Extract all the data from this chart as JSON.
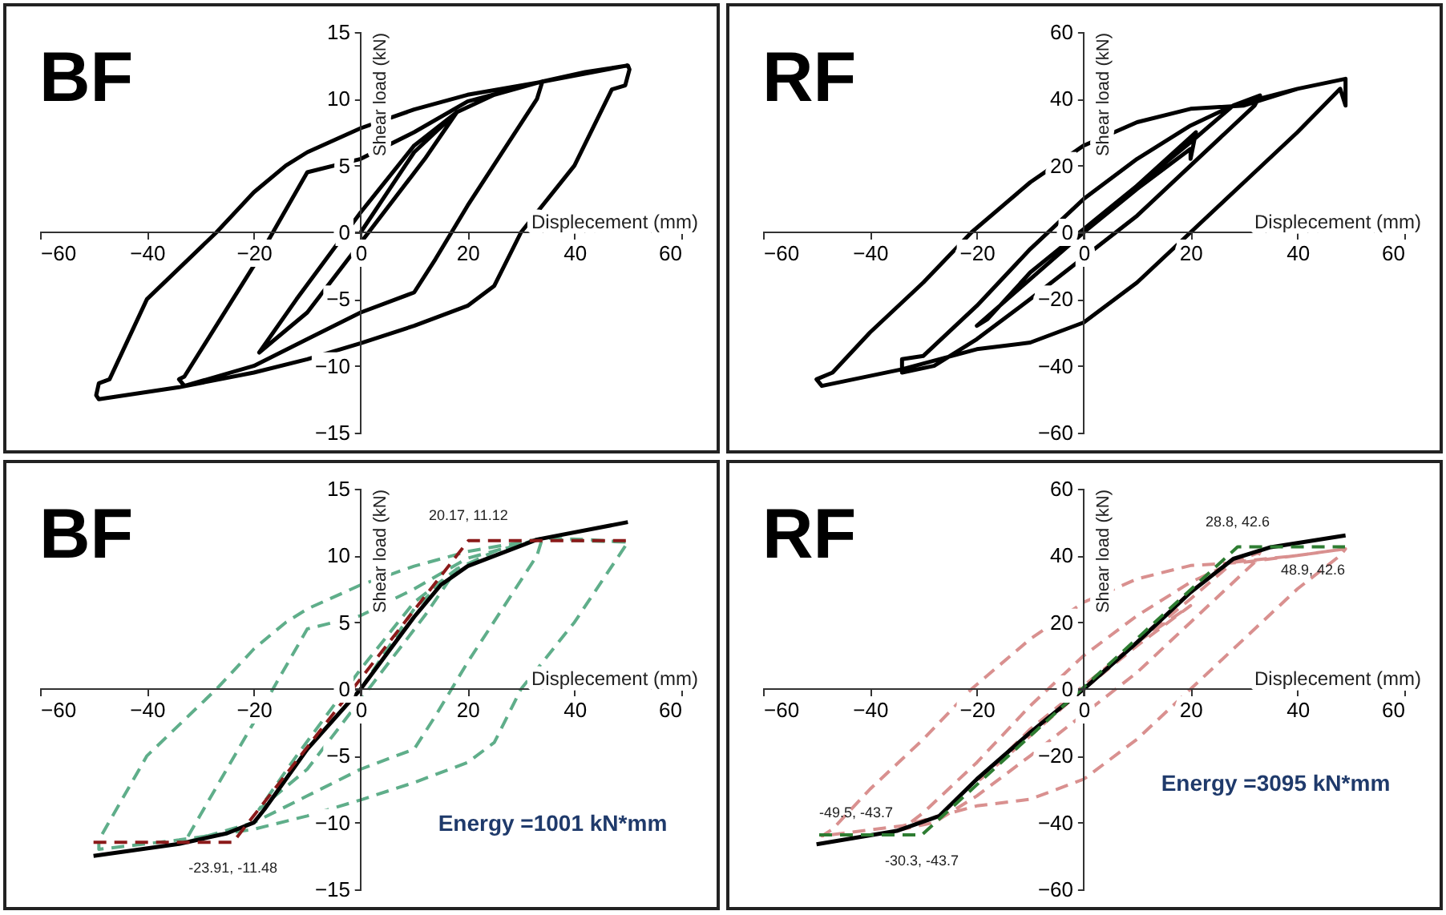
{
  "chart_data": [
    {
      "type": "line",
      "title": "BF",
      "xlabel": "Displecement (mm)",
      "ylabel": "Shear load  (kN)",
      "xlim": [
        -60,
        60
      ],
      "xticks": [
        -60,
        -40,
        -20,
        0,
        20,
        40,
        60
      ],
      "ylim": [
        -15,
        15
      ],
      "yticks": [
        -15,
        -10,
        -5,
        0,
        5,
        10,
        15
      ],
      "grid": false,
      "series": [
        {
          "color": "#000000",
          "line_style": "solid",
          "x": [
            0,
            10,
            18,
            12,
            -10,
            -19,
            -12,
            0,
            10,
            18,
            25,
            34,
            33,
            20,
            14,
            10,
            0,
            -10,
            -20,
            -33,
            -34,
            -33,
            -20,
            -10,
            0,
            10,
            20,
            34,
            42,
            50,
            50.3,
            49.5,
            47,
            40,
            30,
            25,
            20,
            10,
            0,
            -10,
            -20,
            -34,
            -49,
            -49.5,
            -49,
            -47,
            -40,
            -27,
            -20,
            -14,
            -10,
            0,
            10,
            20,
            33,
            50
          ],
          "values": [
            0,
            6,
            9,
            5.5,
            -6,
            -9,
            -5,
            1.5,
            6.5,
            9,
            10.3,
            11.3,
            10,
            2,
            -2,
            -4.5,
            -6,
            -8,
            -10,
            -11.5,
            -11,
            -10.8,
            -2.5,
            4.5,
            5.5,
            7.5,
            9.8,
            11.3,
            12,
            12.5,
            12.2,
            11,
            10.7,
            5,
            0,
            -4,
            -5.5,
            -7,
            -8.3,
            -9.5,
            -10.5,
            -11.6,
            -12.5,
            -12.2,
            -11.3,
            -11,
            -5,
            0,
            3,
            5,
            6,
            7.8,
            9.2,
            10.3,
            11.2,
            12.5
          ]
        }
      ]
    },
    {
      "type": "line",
      "title": "RF",
      "xlabel": "Displecement (mm)",
      "ylabel": "Shear load  (kN)",
      "xlim": [
        -60,
        60
      ],
      "xticks": [
        -60,
        -40,
        -20,
        0,
        20,
        40,
        60
      ],
      "ylim": [
        -60,
        60
      ],
      "yticks": [
        -60,
        -40,
        -20,
        0,
        20,
        40,
        60
      ],
      "grid": false,
      "series": [
        {
          "color": "#000000",
          "line_style": "solid",
          "x": [
            0,
            10,
            20,
            20,
            21,
            10,
            0,
            -10,
            -20,
            -18,
            -10,
            0,
            10,
            20,
            28,
            33,
            32,
            20,
            10,
            -10,
            -20,
            -28,
            -34,
            -34,
            -30,
            -20,
            -10,
            0,
            10,
            20,
            28,
            40,
            49,
            49,
            48,
            40,
            30,
            20,
            10,
            0,
            -10,
            -20,
            -34,
            -49,
            -50,
            -47,
            -40,
            -30,
            -21,
            -10,
            0,
            10,
            20,
            30,
            40,
            49
          ],
          "values": [
            0,
            13,
            25,
            22,
            30,
            14,
            0,
            -14,
            -28,
            -26,
            -12,
            1,
            14,
            27,
            38,
            41,
            38,
            20,
            5,
            -20,
            -32,
            -40,
            -42,
            -38,
            -37,
            -22,
            -5,
            10,
            22,
            32,
            38,
            43,
            46,
            38,
            43,
            30,
            15,
            0,
            -15,
            -27,
            -33,
            -35,
            -41,
            -46,
            -44,
            -42,
            -30,
            -15,
            0,
            15,
            26,
            33,
            37,
            38,
            43,
            46
          ]
        }
      ]
    },
    {
      "type": "line",
      "title": "BF",
      "xlabel": "Displecement (mm)",
      "ylabel": "Shear load  (kN)",
      "xlim": [
        -60,
        60
      ],
      "xticks": [
        -60,
        -40,
        -20,
        0,
        20,
        40,
        60
      ],
      "ylim": [
        -15,
        15
      ],
      "yticks": [
        -15,
        -10,
        -5,
        0,
        5,
        10,
        15
      ],
      "grid": false,
      "series": [
        {
          "color": "#5fae8a",
          "line_style": "dashed",
          "x": [
            0,
            10,
            18,
            12,
            -10,
            -19,
            -12,
            0,
            10,
            18,
            25,
            34,
            33,
            20,
            14,
            10,
            0,
            -10,
            -20,
            -33,
            -20,
            -10,
            0,
            10,
            20,
            34,
            42,
            50,
            49.5,
            40,
            30,
            25,
            20,
            10,
            0,
            -10,
            -20,
            -34,
            -49,
            -49,
            -40,
            -27,
            -20,
            -14,
            -10,
            0,
            10,
            20,
            33,
            50
          ],
          "values": [
            0,
            6,
            9,
            5.5,
            -6,
            -9,
            -5,
            1.5,
            6.5,
            9,
            10.3,
            11.3,
            10,
            2,
            -2,
            -4.5,
            -6,
            -8,
            -10,
            -11.5,
            -2.5,
            4.5,
            5.5,
            7.5,
            9.8,
            11.3,
            11.2,
            11,
            10.7,
            5,
            0,
            -4,
            -5.5,
            -7,
            -8.3,
            -9.5,
            -10.5,
            -11.3,
            -12,
            -11.3,
            -5,
            0,
            3,
            5,
            6,
            7.8,
            9.2,
            10.3,
            11.2,
            11
          ]
        },
        {
          "color": "#000000",
          "line_style": "solid",
          "x": [
            -50,
            -34,
            -25,
            -20,
            -18,
            -10,
            0,
            10,
            15,
            20,
            33,
            50
          ],
          "values": [
            -12.5,
            -11.6,
            -10.8,
            -10,
            -9,
            -4.5,
            0,
            5.4,
            7.8,
            9.2,
            11.2,
            12.5
          ]
        },
        {
          "color": "#8b1a1a",
          "line_style": "dashed",
          "x": [
            -50,
            -23.91,
            20.17,
            50
          ],
          "values": [
            -11.48,
            -11.48,
            11.12,
            11.12
          ]
        }
      ],
      "annotations": [
        {
          "text": "20.17, 11.12",
          "x": 20.17,
          "y": 11.12
        },
        {
          "text": "-23.91, -11.48",
          "x": -23.91,
          "y": -11.48
        },
        {
          "text": "Energy =1001 kN*mm",
          "x": 7,
          "y": -7.5
        }
      ]
    },
    {
      "type": "line",
      "title": "RF",
      "xlabel": "Displecement (mm)",
      "ylabel": "Shear load  (kN)",
      "xlim": [
        -60,
        60
      ],
      "xticks": [
        -60,
        -40,
        -20,
        0,
        20,
        40,
        60
      ],
      "ylim": [
        -60,
        60
      ],
      "yticks": [
        -60,
        -40,
        -20,
        0,
        20,
        40,
        60
      ],
      "grid": false,
      "series": [
        {
          "color": "#d9908f",
          "line_style": "dashed",
          "x": [
            0,
            10,
            20,
            10,
            0,
            -10,
            -20,
            -10,
            0,
            10,
            20,
            28,
            33,
            32,
            20,
            10,
            -10,
            -20,
            -28,
            -34,
            -30,
            -20,
            -10,
            0,
            10,
            20,
            28,
            40,
            49,
            48,
            40,
            30,
            20,
            10,
            0,
            -10,
            -20,
            -34,
            -49,
            -47,
            -40,
            -30,
            -21,
            -10,
            0,
            10,
            20,
            30,
            40,
            49
          ],
          "values": [
            0,
            13,
            25,
            14,
            0,
            -14,
            -28,
            -12,
            1,
            14,
            27,
            38,
            41,
            38,
            20,
            5,
            -20,
            -32,
            -40,
            -42,
            -37,
            -22,
            -5,
            10,
            22,
            32,
            38,
            40,
            42,
            40,
            30,
            15,
            0,
            -15,
            -27,
            -33,
            -35,
            -41,
            -44,
            -42,
            -30,
            -15,
            0,
            15,
            26,
            33,
            37,
            38,
            40,
            42
          ]
        },
        {
          "color": "#000000",
          "line_style": "solid",
          "x": [
            -50,
            -35,
            -27,
            -20,
            -10,
            0,
            10,
            20,
            28,
            35,
            49
          ],
          "values": [
            -46.5,
            -42.5,
            -38,
            -27,
            -13,
            0,
            14,
            29,
            39,
            42.5,
            46
          ]
        },
        {
          "color": "#2e7d32",
          "line_style": "dashed",
          "x": [
            -49.5,
            -30.3,
            28.8,
            48.9
          ],
          "values": [
            -43.7,
            -43.7,
            42.6,
            42.6
          ]
        }
      ],
      "annotations": [
        {
          "text": "28.8, 42.6",
          "x": 28.8,
          "y": 42.6
        },
        {
          "text": "48.9, 42.6",
          "x": 48.9,
          "y": 42.6
        },
        {
          "text": "-49.5, -43.7",
          "x": -49.5,
          "y": -43.7
        },
        {
          "text": "-30.3, -43.7",
          "x": -30.3,
          "y": -43.7
        },
        {
          "text": "Energy =3095 kN*mm",
          "x": 7,
          "y": -18
        }
      ]
    }
  ]
}
